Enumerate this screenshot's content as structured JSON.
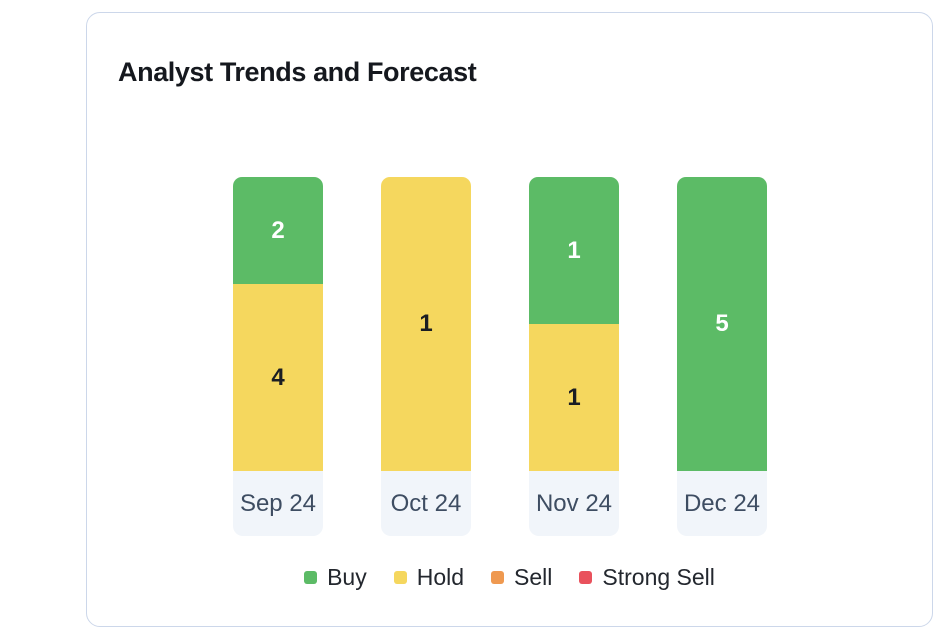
{
  "card": {
    "title": "Analyst Trends and Forecast"
  },
  "chart_data": {
    "type": "bar",
    "subtype": "100-percent-stacked-column",
    "title": "Analyst Trends and Forecast",
    "categories": [
      "Sep 24",
      "Oct 24",
      "Nov 24",
      "Dec 24"
    ],
    "series": [
      {
        "name": "Buy",
        "color": "#5cbb66",
        "label_color": "#ffffff",
        "values": [
          2,
          0,
          1,
          5
        ]
      },
      {
        "name": "Hold",
        "color": "#f5d75e",
        "label_color": "#1a1d23",
        "values": [
          4,
          1,
          1,
          0
        ]
      },
      {
        "name": "Sell",
        "color": "#ef9950",
        "label_color": "#ffffff",
        "values": [
          0,
          0,
          0,
          0
        ]
      },
      {
        "name": "Strong Sell",
        "color": "#e9515c",
        "label_color": "#ffffff",
        "values": [
          0,
          0,
          0,
          0
        ]
      }
    ],
    "data_labels": "segment counts shown centered inside each segment",
    "legend": [
      "Buy",
      "Hold",
      "Sell",
      "Strong Sell"
    ],
    "legend_position": "bottom",
    "grid": false,
    "y_axis": "hidden; each column normalized to equal height",
    "category_label_style": {
      "background": "#f1f5fa",
      "text_color": "#3e4d62"
    }
  },
  "colors": {
    "card_border": "#ccd7ea",
    "card_background": "#ffffff",
    "title_text": "#15181e",
    "legend_text": "#23272e"
  }
}
